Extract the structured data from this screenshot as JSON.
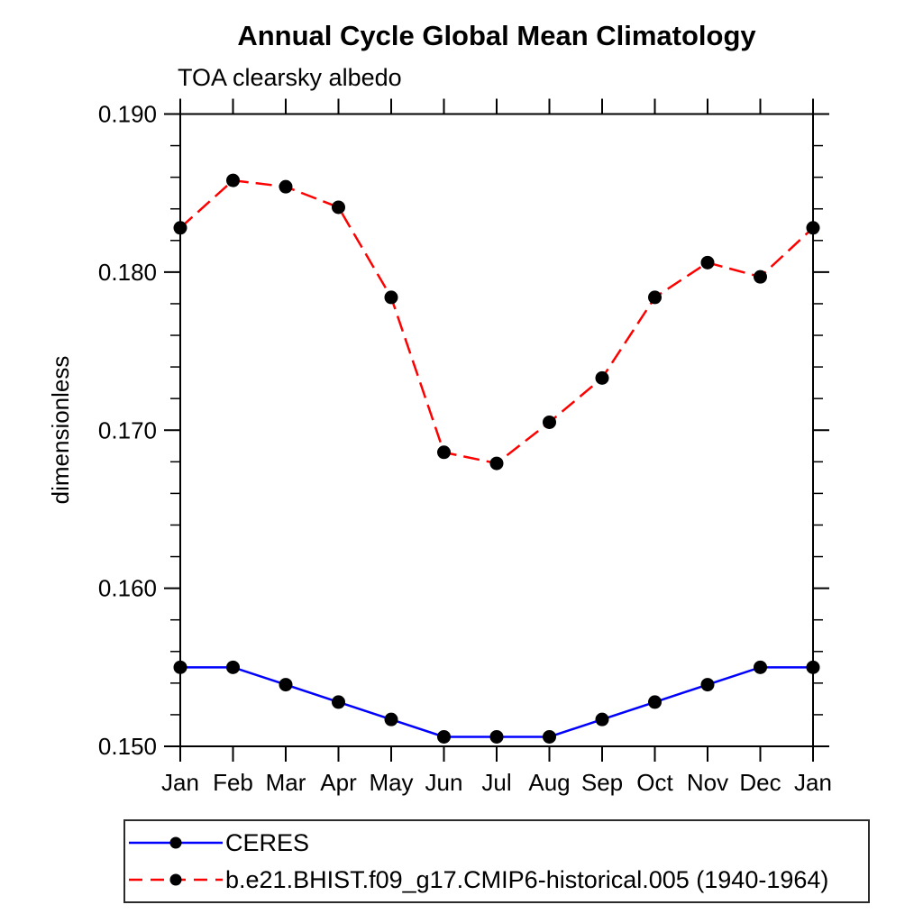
{
  "chart_data": {
    "type": "line",
    "title": "Annual Cycle Global Mean Climatology",
    "subtitle": "TOA clearsky albedo",
    "ylabel": "dimensionless",
    "xlabel": "",
    "categories": [
      "Jan",
      "Feb",
      "Mar",
      "Apr",
      "May",
      "Jun",
      "Jul",
      "Aug",
      "Sep",
      "Oct",
      "Nov",
      "Dec",
      "Jan"
    ],
    "ylim": [
      0.15,
      0.19
    ],
    "ytick_major": 0.01,
    "ytick_minor": 0.002,
    "ytick_labels": [
      "0.150",
      "0.160",
      "0.170",
      "0.180",
      "0.190"
    ],
    "grid": false,
    "legend_position": "bottom-left",
    "frame": "full-box, outward ticks",
    "marker": {
      "shape": "circle",
      "color": "#000000",
      "radius": 7.5
    },
    "series": [
      {
        "name": "CERES",
        "color": "#0000ff",
        "style": "solid",
        "values": [
          0.155,
          0.155,
          0.1539,
          0.1528,
          0.1517,
          0.1506,
          0.1506,
          0.1506,
          0.1517,
          0.1528,
          0.1539,
          0.155,
          0.155
        ]
      },
      {
        "name": "b.e21.BHIST.f09_g17.CMIP6-historical.005 (1940-1964)",
        "color": "#ff0000",
        "style": "dashed",
        "values": [
          0.1828,
          0.1858,
          0.1854,
          0.1841,
          0.1784,
          0.1686,
          0.1679,
          0.1705,
          0.1733,
          0.1784,
          0.1806,
          0.1797,
          0.1828
        ]
      }
    ]
  }
}
